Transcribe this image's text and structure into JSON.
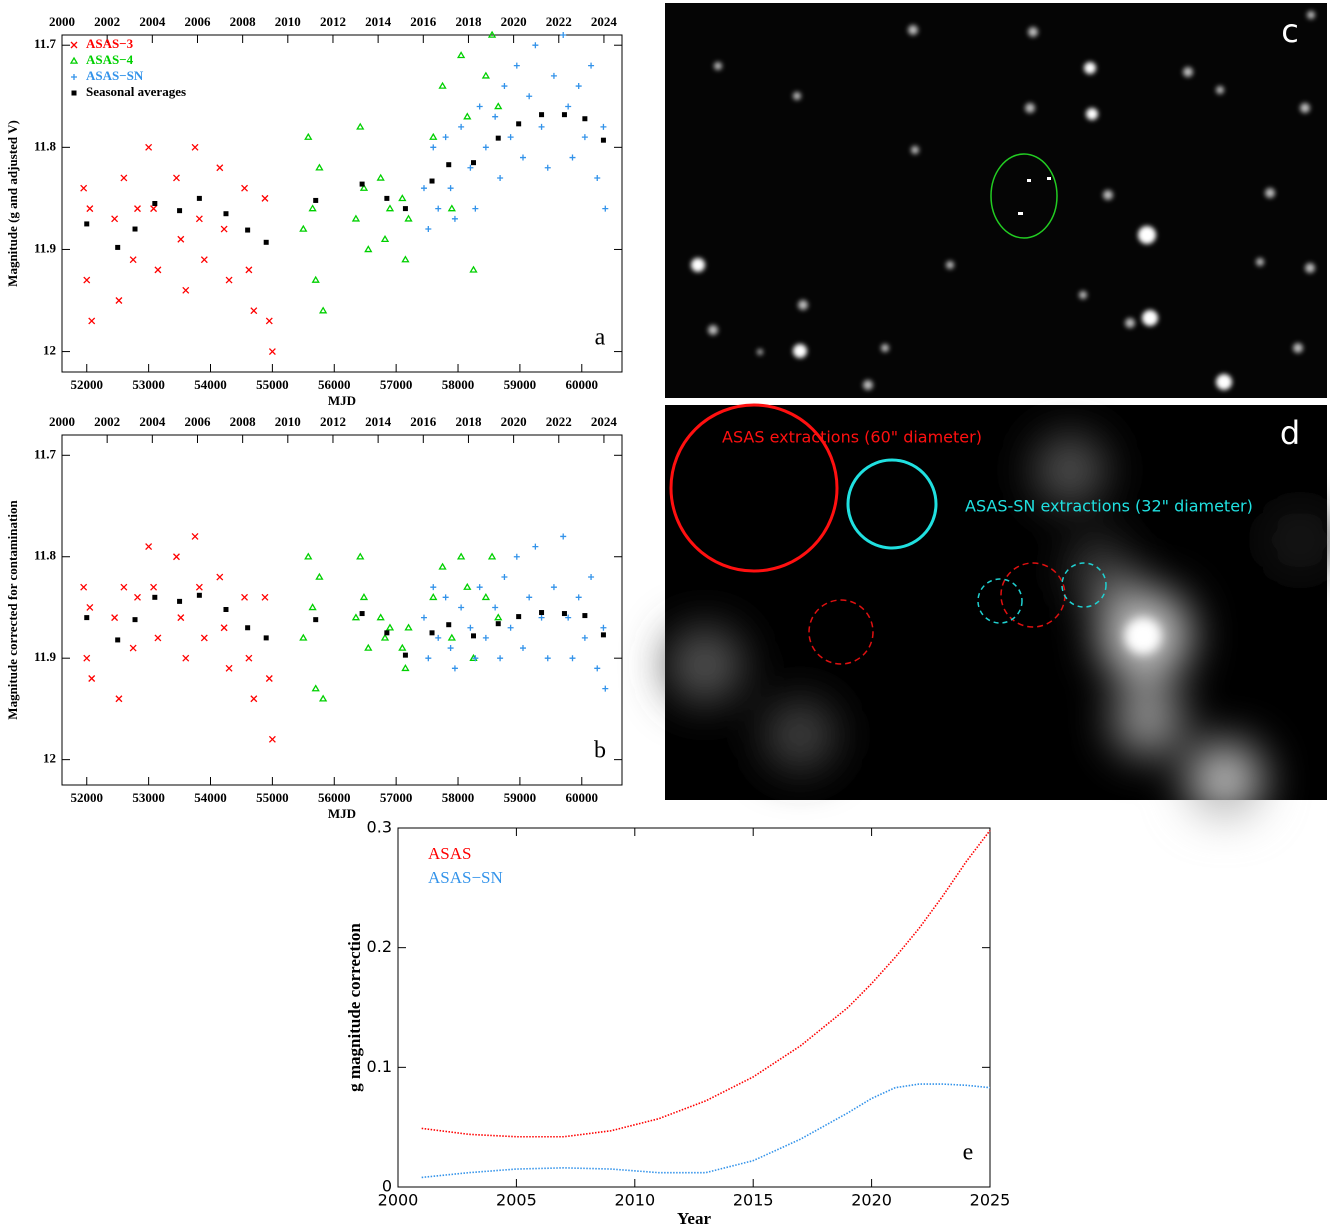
{
  "chart_data": [
    {
      "type": "scatter",
      "panel_label": "a",
      "xlabel": "MJD",
      "ylabel": "Magnitude (g and adjusted V)",
      "legend": "upper left",
      "xlim": [
        51600,
        60650
      ],
      "xticks": [
        52000,
        53000,
        54000,
        55000,
        56000,
        57000,
        58000,
        59000,
        60000
      ],
      "x2lim": [
        2000,
        2024.8
      ],
      "x2ticks": [
        2000,
        2002,
        2004,
        2006,
        2008,
        2010,
        2012,
        2014,
        2016,
        2018,
        2020,
        2022,
        2024
      ],
      "ylim": [
        12.02,
        11.69
      ],
      "yticks": [
        11.7,
        11.8,
        11.9,
        12
      ],
      "series": [
        {
          "name": "ASAS−3",
          "color": "#ff0000",
          "marker": "x",
          "x": [
            51950,
            52000,
            52050,
            52080,
            52450,
            52520,
            52600,
            52750,
            52820,
            53000,
            53080,
            53150,
            53450,
            53520,
            53600,
            53750,
            53820,
            53900,
            54150,
            54220,
            54300,
            54550,
            54620,
            54700,
            54880,
            54950,
            55000
          ],
          "values": [
            11.84,
            11.93,
            11.86,
            11.97,
            11.87,
            11.95,
            11.83,
            11.91,
            11.86,
            11.8,
            11.86,
            11.92,
            11.83,
            11.89,
            11.94,
            11.8,
            11.87,
            11.91,
            11.82,
            11.88,
            11.93,
            11.84,
            11.92,
            11.96,
            11.85,
            11.97,
            12.0
          ]
        },
        {
          "name": "ASAS−4",
          "color": "#00d000",
          "marker": "triangle",
          "x": [
            55500,
            55580,
            55650,
            55700,
            55760,
            55820,
            56350,
            56420,
            56480,
            56550,
            56750,
            56820,
            56900,
            57100,
            57150,
            57200,
            57600,
            57750,
            57900,
            58050,
            58150,
            58250,
            58450,
            58550,
            58650
          ],
          "values": [
            11.88,
            11.79,
            11.86,
            11.93,
            11.82,
            11.96,
            11.87,
            11.78,
            11.84,
            11.9,
            11.83,
            11.89,
            11.86,
            11.85,
            11.91,
            11.87,
            11.79,
            11.74,
            11.86,
            11.71,
            11.77,
            11.92,
            11.73,
            11.69,
            11.76
          ]
        },
        {
          "name": "ASAS−SN",
          "color": "#3393ea",
          "marker": "plus",
          "x": [
            57450,
            57520,
            57600,
            57680,
            57800,
            57880,
            57950,
            58050,
            58200,
            58280,
            58350,
            58450,
            58600,
            58680,
            58750,
            58850,
            58950,
            59050,
            59150,
            59250,
            59350,
            59450,
            59550,
            59700,
            59780,
            59850,
            59950,
            60050,
            60150,
            60250,
            60350,
            60380
          ],
          "values": [
            11.84,
            11.88,
            11.8,
            11.86,
            11.79,
            11.84,
            11.87,
            11.78,
            11.82,
            11.86,
            11.76,
            11.8,
            11.77,
            11.83,
            11.74,
            11.79,
            11.72,
            11.81,
            11.75,
            11.7,
            11.78,
            11.82,
            11.73,
            11.69,
            11.76,
            11.81,
            11.74,
            11.79,
            11.72,
            11.83,
            11.78,
            11.86
          ]
        },
        {
          "name": "Seasonal averages",
          "color": "#000000",
          "marker": "square",
          "x": [
            52000,
            52500,
            52780,
            53100,
            53500,
            53820,
            54250,
            54600,
            54900,
            55700,
            56450,
            56850,
            57150,
            57580,
            57850,
            58250,
            58650,
            58980,
            59350,
            59720,
            60050,
            60350
          ],
          "values": [
            11.875,
            11.898,
            11.88,
            11.855,
            11.862,
            11.85,
            11.865,
            11.881,
            11.893,
            11.852,
            11.836,
            11.85,
            11.86,
            11.833,
            11.817,
            11.815,
            11.791,
            11.777,
            11.768,
            11.768,
            11.772,
            11.793
          ]
        }
      ]
    },
    {
      "type": "scatter",
      "panel_label": "b",
      "xlabel": "MJD",
      "ylabel": "Magnitude corrected for contamination",
      "xlim": [
        51600,
        60650
      ],
      "xticks": [
        52000,
        53000,
        54000,
        55000,
        56000,
        57000,
        58000,
        59000,
        60000
      ],
      "x2lim": [
        2000,
        2024.8
      ],
      "x2ticks": [
        2000,
        2002,
        2004,
        2006,
        2008,
        2010,
        2012,
        2014,
        2016,
        2018,
        2020,
        2022,
        2024
      ],
      "ylim": [
        12.025,
        11.68
      ],
      "yticks": [
        11.7,
        11.8,
        11.9,
        12
      ],
      "series": [
        {
          "color": "#ff0000",
          "marker": "x",
          "x": [
            51950,
            52000,
            52050,
            52080,
            52450,
            52520,
            52600,
            52750,
            52820,
            53000,
            53080,
            53150,
            53450,
            53520,
            53600,
            53750,
            53820,
            53900,
            54150,
            54220,
            54300,
            54550,
            54620,
            54700,
            54880,
            54950,
            55000
          ],
          "values": [
            11.83,
            11.9,
            11.85,
            11.92,
            11.86,
            11.94,
            11.83,
            11.89,
            11.84,
            11.79,
            11.83,
            11.88,
            11.8,
            11.86,
            11.9,
            11.78,
            11.83,
            11.88,
            11.82,
            11.87,
            11.91,
            11.84,
            11.9,
            11.94,
            11.84,
            11.92,
            11.98
          ]
        },
        {
          "color": "#00d000",
          "marker": "triangle",
          "x": [
            55500,
            55580,
            55650,
            55700,
            55760,
            55820,
            56350,
            56420,
            56480,
            56550,
            56750,
            56820,
            56900,
            57100,
            57150,
            57200,
            57600,
            57750,
            57900,
            58050,
            58150,
            58250,
            58450,
            58550,
            58650
          ],
          "values": [
            11.88,
            11.8,
            11.85,
            11.93,
            11.82,
            11.94,
            11.86,
            11.8,
            11.84,
            11.89,
            11.86,
            11.88,
            11.87,
            11.89,
            11.91,
            11.87,
            11.84,
            11.81,
            11.88,
            11.8,
            11.83,
            11.9,
            11.84,
            11.8,
            11.86
          ]
        },
        {
          "color": "#3393ea",
          "marker": "plus",
          "x": [
            57450,
            57520,
            57600,
            57680,
            57800,
            57880,
            57950,
            58050,
            58200,
            58280,
            58350,
            58450,
            58600,
            58680,
            58750,
            58850,
            58950,
            59050,
            59150,
            59250,
            59350,
            59450,
            59550,
            59700,
            59780,
            59850,
            59950,
            60050,
            60150,
            60250,
            60350,
            60380
          ],
          "values": [
            11.86,
            11.9,
            11.83,
            11.88,
            11.84,
            11.89,
            11.91,
            11.85,
            11.87,
            11.9,
            11.83,
            11.88,
            11.85,
            11.9,
            11.82,
            11.87,
            11.8,
            11.89,
            11.84,
            11.79,
            11.86,
            11.9,
            11.83,
            11.78,
            11.86,
            11.9,
            11.84,
            11.88,
            11.82,
            11.91,
            11.87,
            11.93
          ]
        },
        {
          "color": "#000000",
          "marker": "square",
          "x": [
            52000,
            52500,
            52780,
            53100,
            53500,
            53820,
            54250,
            54600,
            54900,
            55700,
            56450,
            56850,
            57150,
            57580,
            57850,
            58250,
            58650,
            58980,
            59350,
            59720,
            60050,
            60350
          ],
          "values": [
            11.86,
            11.882,
            11.862,
            11.84,
            11.844,
            11.838,
            11.852,
            11.87,
            11.88,
            11.862,
            11.856,
            11.875,
            11.897,
            11.875,
            11.867,
            11.878,
            11.866,
            11.859,
            11.855,
            11.856,
            11.858,
            11.877
          ]
        }
      ]
    },
    {
      "type": "line",
      "panel_label": "e",
      "xlabel": "Year",
      "ylabel": "g magnitude correction",
      "legend": "upper left",
      "xlim": [
        2000,
        2025
      ],
      "xticks": [
        2000,
        2005,
        2010,
        2015,
        2020,
        2025
      ],
      "ylim": [
        0,
        0.3
      ],
      "yticks": [
        0,
        0.1,
        0.2,
        0.3
      ],
      "x": [
        2001,
        2003,
        2005,
        2007,
        2009,
        2011,
        2013,
        2015,
        2017,
        2019,
        2020,
        2021,
        2022,
        2023,
        2024,
        2025
      ],
      "series": [
        {
          "name": "ASAS",
          "color": "#ff0000",
          "values": [
            0.049,
            0.044,
            0.042,
            0.042,
            0.047,
            0.057,
            0.072,
            0.092,
            0.118,
            0.15,
            0.17,
            0.192,
            0.216,
            0.243,
            0.272,
            0.298
          ]
        },
        {
          "name": "ASAS−SN",
          "color": "#3393ea",
          "values": [
            0.008,
            0.012,
            0.015,
            0.016,
            0.015,
            0.012,
            0.012,
            0.022,
            0.04,
            0.062,
            0.074,
            0.083,
            0.086,
            0.086,
            0.085,
            0.083
          ]
        }
      ]
    }
  ],
  "images": [
    {
      "label": "c"
    },
    {
      "label": "d",
      "annotations": [
        "ASAS extractions (60\" diameter)",
        "ASAS-SN extractions (32\" diameter)"
      ]
    }
  ]
}
